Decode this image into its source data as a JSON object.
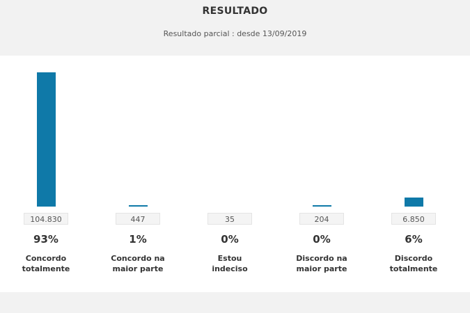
{
  "header": {
    "title": "RESULTADO",
    "subtitle": "Resultado parcial : desde 13/09/2019"
  },
  "colors": {
    "bar": "#0f79a8",
    "header_bg": "#f2f2f2"
  },
  "chart_data": {
    "type": "bar",
    "title": "RESULTADO",
    "subtitle": "Resultado parcial : desde 13/09/2019",
    "categories": [
      "Concordo totalmente",
      "Concordo na maior parte",
      "Estou indeciso",
      "Discordo na maior parte",
      "Discordo totalmente"
    ],
    "category_lines": [
      [
        "Concordo",
        "totalmente"
      ],
      [
        "Concordo na",
        "maior parte"
      ],
      [
        "Estou",
        "indeciso"
      ],
      [
        "Discordo na",
        "maior parte"
      ],
      [
        "Discordo",
        "totalmente"
      ]
    ],
    "values": [
      104830,
      447,
      35,
      204,
      6850
    ],
    "value_labels": [
      "104.830",
      "447",
      "35",
      "204",
      "6.850"
    ],
    "percent_labels": [
      "93%",
      "1%",
      "0%",
      "0%",
      "6%"
    ],
    "ylim": [
      0,
      104830
    ],
    "grid": false,
    "legend": "none"
  }
}
